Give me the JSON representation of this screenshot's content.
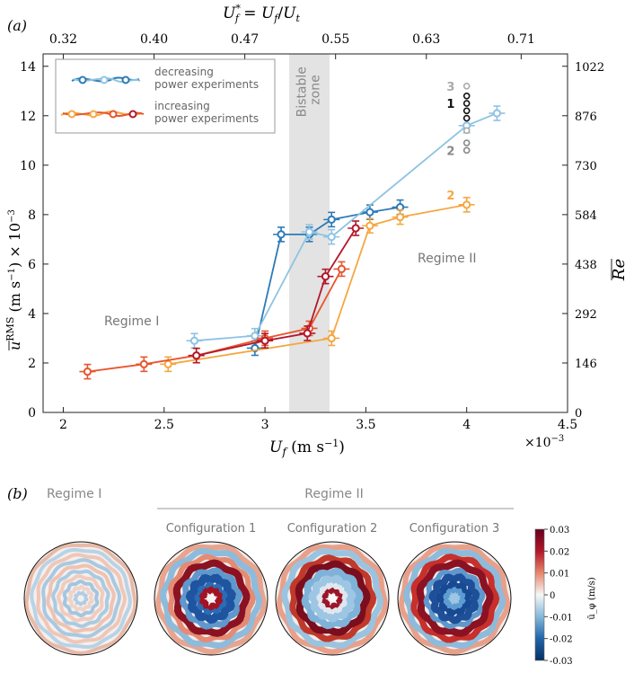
{
  "panel_a_label": "(a)",
  "panel_b_label": "(b)",
  "chart_data": {
    "type": "scatter",
    "xlabel": "U_f (m s^-1)",
    "x_multiplier": "×10^-3",
    "ylabel": "u^RMS (m s^-1) × 10^-3",
    "top_xlabel": "U_f* = U_f/U_t",
    "right_ylabel": "Re",
    "xlim": [
      1.9,
      4.5
    ],
    "ylim": [
      0,
      14.5
    ],
    "x_ticks": [
      2,
      2.5,
      3,
      3.5,
      4,
      4.5
    ],
    "x_tick_labels": [
      "2",
      "2.5",
      "3",
      "3.5",
      "4",
      "4.5"
    ],
    "y_ticks": [
      0,
      2,
      4,
      6,
      8,
      10,
      12,
      14
    ],
    "y_tick_labels": [
      "0",
      "2",
      "4",
      "6",
      "8",
      "10",
      "12",
      "14"
    ],
    "top_ticks": [
      2.0,
      2.45,
      2.9,
      3.35,
      3.8,
      4.27
    ],
    "top_tick_labels": [
      "0.32",
      "0.40",
      "0.47",
      "0.55",
      "0.63",
      "0.71"
    ],
    "right_ticks": [
      0,
      2,
      4,
      6,
      8,
      10,
      12,
      14
    ],
    "right_tick_labels": [
      "0",
      "146",
      "292",
      "438",
      "584",
      "730",
      "876",
      "1022"
    ],
    "bistable_zone": [
      3.12,
      3.32
    ],
    "bistable_label": "Bistable zone",
    "bistable_lines": [
      "Bistable",
      "zone"
    ],
    "regime_labels": [
      "Regime I",
      "Regime II"
    ],
    "legend": {
      "decreasing_line1": "decreasing",
      "decreasing_line2": "power experiments",
      "increasing_line1": "increasing",
      "increasing_line2": "power experiments"
    },
    "series": [
      {
        "name": "decreasing-dark",
        "color": "#2c7bb6",
        "x": [
          2.95,
          3.08,
          3.22,
          3.33,
          3.52,
          3.67
        ],
        "y": [
          2.6,
          7.2,
          7.2,
          7.8,
          8.1,
          8.3
        ]
      },
      {
        "name": "decreasing-light",
        "color": "#8ec3e3",
        "x": [
          2.65,
          2.95,
          3.22,
          3.33,
          4.0,
          4.15
        ],
        "y": [
          2.9,
          3.1,
          7.3,
          7.1,
          11.6,
          12.1
        ]
      },
      {
        "name": "increasing-orange",
        "color": "#f5a742",
        "x": [
          2.52,
          3.33,
          3.52,
          3.67,
          4.0
        ],
        "y": [
          1.95,
          3.0,
          7.55,
          7.9,
          8.4
        ]
      },
      {
        "name": "increasing-red",
        "color": "#e8552d",
        "x": [
          2.12,
          2.4,
          2.66,
          3.0,
          3.22,
          3.38
        ],
        "y": [
          1.65,
          1.95,
          2.3,
          3.0,
          3.4,
          5.8
        ]
      },
      {
        "name": "increasing-darkred",
        "color": "#b2182b",
        "x": [
          2.66,
          3.0,
          3.21,
          3.3,
          3.45
        ],
        "y": [
          2.3,
          2.9,
          3.2,
          5.5,
          7.45
        ]
      }
    ],
    "annotations": [
      {
        "text": "3",
        "x": 3.95,
        "y": 13.2,
        "color": "#aaaaaa"
      },
      {
        "text": "1",
        "x": 3.95,
        "y": 12.5,
        "color": "#111111"
      },
      {
        "text": "2",
        "x": 3.95,
        "y": 10.6,
        "color": "#888888"
      },
      {
        "text": "2",
        "x": 3.95,
        "y": 8.8,
        "color": "#f5a742"
      }
    ],
    "state_circles": [
      {
        "y": 13.2,
        "color": "#aaaaaa"
      },
      {
        "y": 12.8,
        "color": "#111111"
      },
      {
        "y": 12.5,
        "color": "#111111"
      },
      {
        "y": 12.2,
        "color": "#111111"
      },
      {
        "y": 11.9,
        "color": "#111111"
      },
      {
        "y": 11.4,
        "color": "#aaaaaa"
      },
      {
        "y": 10.9,
        "color": "#888888"
      },
      {
        "y": 10.6,
        "color": "#888888"
      }
    ]
  },
  "panel_b": {
    "regime1_label": "Regime I",
    "regime2_label": "Regime II",
    "configs": [
      "Configuration 1",
      "Configuration 2",
      "Configuration 3"
    ],
    "colorbar": {
      "ticks": [
        "0.03",
        "0.02",
        "0.01",
        "0",
        "-0.01",
        "-0.02",
        "-0.03"
      ],
      "label": "ū_φ (m/s)"
    }
  }
}
